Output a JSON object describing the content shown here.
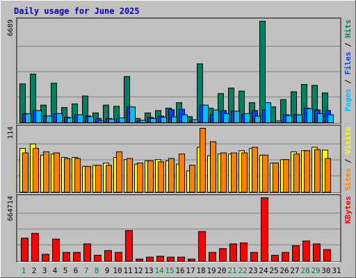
{
  "chart_data": {
    "type": "bar",
    "title": "Daily usage for June 2025",
    "categories": [
      "1",
      "2",
      "3",
      "4",
      "5",
      "6",
      "7",
      "8",
      "9",
      "10",
      "11",
      "12",
      "13",
      "14",
      "15",
      "16",
      "17",
      "18",
      "19",
      "20",
      "21",
      "22",
      "23",
      "24",
      "25",
      "26",
      "27",
      "28",
      "29",
      "30",
      "31"
    ],
    "weekend_categories": [
      "1",
      "7",
      "8",
      "14",
      "15",
      "21",
      "22",
      "28",
      "29"
    ],
    "panels": [
      {
        "id": "hits",
        "ymax_label": "6689",
        "ylim": [
          0,
          6689
        ],
        "legend": [
          {
            "text": "Pages",
            "color": "#00c0ff"
          },
          {
            "text": " / ",
            "color": "#000000"
          },
          {
            "text": "Files",
            "color": "#0040ff"
          },
          {
            "text": " / ",
            "color": "#000000"
          },
          {
            "text": "Hits",
            "color": "#008060"
          }
        ],
        "series": [
          {
            "name": "Hits",
            "color": "#008060",
            "values": [
              2560,
              3200,
              1160,
              2600,
              1000,
              1240,
              1760,
              640,
              1160,
              1080,
              3040,
              280,
              640,
              800,
              960,
              1320,
              400,
              3880,
              960,
              1920,
              2280,
              2080,
              1320,
              6689,
              1040,
              1520,
              2040,
              2520,
              2460,
              1960,
              0
            ]
          },
          {
            "name": "Files",
            "color": "#0040ff",
            "values": [
              600,
              800,
              440,
              600,
              360,
              520,
              440,
              280,
              280,
              240,
              1040,
              140,
              360,
              440,
              860,
              880,
              160,
              1160,
              520,
              800,
              760,
              560,
              800,
              840,
              0,
              520,
              520,
              960,
              840,
              800,
              0
            ]
          },
          {
            "name": "Pages",
            "color": "#00c0ff",
            "values": [
              580,
              800,
              440,
              600,
              320,
              520,
              400,
              120,
              240,
              320,
              1040,
              160,
              280,
              360,
              380,
              520,
              200,
              1160,
              840,
              600,
              760,
              600,
              440,
              1320,
              120,
              480,
              520,
              920,
              600,
              520,
              0
            ]
          }
        ]
      },
      {
        "id": "visits",
        "ymax_label": "114",
        "ylim": [
          0,
          114
        ],
        "legend": [
          {
            "text": "Sites",
            "color": "#ff8000"
          },
          {
            "text": " / ",
            "color": "#000000"
          },
          {
            "text": "Visits",
            "color": "#ffff00"
          }
        ],
        "series": [
          {
            "name": "Visits",
            "color": "#ffff00",
            "values": [
              78,
              86,
              66,
              68,
              62,
              62,
              46,
              48,
              52,
              62,
              58,
              50,
              56,
              58,
              56,
              50,
              38,
              80,
              65,
              68,
              68,
              74,
              78,
              66,
              52,
              58,
              72,
              74,
              80,
              75,
              0
            ]
          },
          {
            "name": "Sites",
            "color": "#ff8000",
            "values": [
              70,
              78,
              72,
              70,
              60,
              60,
              46,
              48,
              48,
              72,
              60,
              52,
              56,
              54,
              60,
              68,
              48,
              114,
              90,
              70,
              70,
              70,
              80,
              66,
              52,
              58,
              68,
              74,
              76,
              60,
              0
            ]
          }
        ]
      },
      {
        "id": "kbytes",
        "ymax_label": "664714",
        "ylim": [
          0,
          664714
        ],
        "legend": [
          {
            "text": "KBytes",
            "color": "#ff0000"
          }
        ],
        "series": [
          {
            "name": "KBytes",
            "color": "#ff0000",
            "values": [
              240000,
              290000,
              70000,
              230000,
              90000,
              90000,
              180000,
              60000,
              110000,
              90000,
              320000,
              20000,
              40000,
              50000,
              40000,
              40000,
              20000,
              310000,
              90000,
              130000,
              180000,
              190000,
              90000,
              664714,
              60000,
              90000,
              160000,
              210000,
              180000,
              120000,
              0
            ]
          }
        ]
      }
    ]
  }
}
